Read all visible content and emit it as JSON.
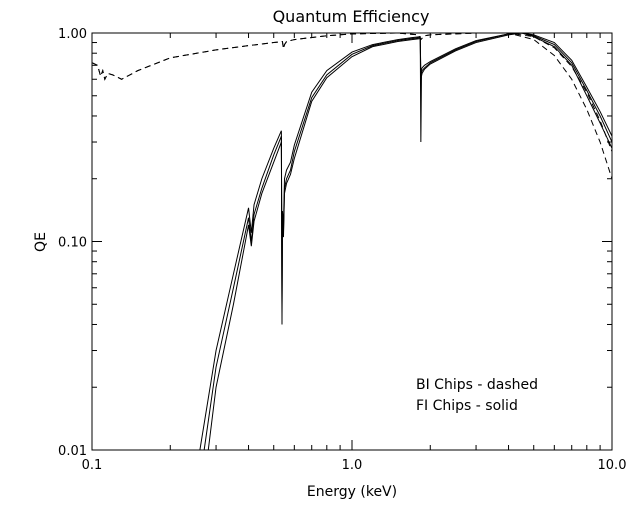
{
  "chart_data": {
    "type": "line",
    "title": "Quantum Efficiency",
    "xlabel": "Energy (keV)",
    "ylabel": "QE",
    "x_scale": "log",
    "y_scale": "log",
    "xlim": [
      0.1,
      10.0
    ],
    "ylim": [
      0.01,
      1.0
    ],
    "x_tick_labels": [
      "0.1",
      "1.0",
      "10.0"
    ],
    "y_tick_labels": [
      "0.01",
      "0.10",
      "1.00"
    ],
    "grid": false,
    "legend_position": "bottom-right",
    "legend_entries": [
      "BI Chips - dashed",
      "FI Chips - solid"
    ],
    "series": [
      {
        "style": "solid",
        "x": [
          0.26,
          0.3,
          0.35,
          0.4,
          0.41,
          0.42,
          0.45,
          0.5,
          0.535,
          0.538,
          0.54,
          0.545,
          0.55,
          0.56,
          0.58,
          0.6,
          0.7,
          0.8,
          1.0,
          1.2,
          1.5,
          1.7,
          1.83,
          1.84,
          1.85,
          1.86,
          1.9,
          2.0,
          2.5,
          3.0,
          4.0,
          4.5,
          5.0,
          6.0,
          7.0,
          8.0,
          9.0,
          10.0
        ],
        "y": [
          0.01,
          0.03,
          0.07,
          0.145,
          0.11,
          0.15,
          0.2,
          0.28,
          0.34,
          0.05,
          0.14,
          0.12,
          0.2,
          0.22,
          0.24,
          0.29,
          0.52,
          0.66,
          0.81,
          0.88,
          0.93,
          0.95,
          0.96,
          0.6,
          0.67,
          0.68,
          0.7,
          0.73,
          0.84,
          0.92,
          0.99,
          1.0,
          0.98,
          0.9,
          0.74,
          0.55,
          0.42,
          0.32
        ]
      },
      {
        "style": "solid",
        "x": [
          0.27,
          0.3,
          0.35,
          0.4,
          0.41,
          0.42,
          0.45,
          0.5,
          0.535,
          0.538,
          0.54,
          0.545,
          0.55,
          0.56,
          0.58,
          0.6,
          0.7,
          0.8,
          1.0,
          1.2,
          1.5,
          1.7,
          1.83,
          1.84,
          1.85,
          1.86,
          1.9,
          2.0,
          2.5,
          3.0,
          4.0,
          4.5,
          5.0,
          6.0,
          7.0,
          8.0,
          9.0,
          10.0
        ],
        "y": [
          0.01,
          0.025,
          0.06,
          0.13,
          0.1,
          0.135,
          0.18,
          0.26,
          0.32,
          0.04,
          0.13,
          0.11,
          0.18,
          0.2,
          0.22,
          0.27,
          0.49,
          0.63,
          0.79,
          0.87,
          0.92,
          0.94,
          0.95,
          0.58,
          0.64,
          0.66,
          0.68,
          0.72,
          0.83,
          0.91,
          0.99,
          1.0,
          0.97,
          0.88,
          0.72,
          0.53,
          0.4,
          0.3
        ]
      },
      {
        "style": "solid",
        "x": [
          0.28,
          0.3,
          0.35,
          0.4,
          0.41,
          0.42,
          0.45,
          0.5,
          0.535,
          0.538,
          0.54,
          0.545,
          0.55,
          0.56,
          0.58,
          0.6,
          0.7,
          0.8,
          1.0,
          1.2,
          1.5,
          1.7,
          1.83,
          1.84,
          1.85,
          1.86,
          1.9,
          2.0,
          2.5,
          3.0,
          4.0,
          4.5,
          5.0,
          6.0,
          7.0,
          8.0,
          9.0,
          10.0
        ],
        "y": [
          0.01,
          0.02,
          0.05,
          0.12,
          0.095,
          0.125,
          0.17,
          0.24,
          0.3,
          0.045,
          0.125,
          0.105,
          0.17,
          0.19,
          0.21,
          0.25,
          0.47,
          0.61,
          0.77,
          0.86,
          0.91,
          0.93,
          0.94,
          0.3,
          0.62,
          0.64,
          0.67,
          0.71,
          0.82,
          0.9,
          0.98,
          1.0,
          0.96,
          0.86,
          0.7,
          0.5,
          0.37,
          0.28
        ]
      },
      {
        "style": "dashed",
        "x": [
          0.1,
          0.105,
          0.108,
          0.11,
          0.112,
          0.115,
          0.12,
          0.13,
          0.15,
          0.2,
          0.3,
          0.4,
          0.5,
          0.54,
          0.545,
          0.55,
          0.56,
          0.6,
          0.8,
          1.0,
          1.5,
          1.8,
          1.84,
          1.9,
          2.0,
          3.0,
          4.0,
          5.0,
          6.0,
          7.0,
          8.0,
          9.0,
          10.0
        ],
        "y": [
          0.72,
          0.7,
          0.62,
          0.66,
          0.6,
          0.64,
          0.63,
          0.6,
          0.66,
          0.76,
          0.83,
          0.87,
          0.9,
          0.91,
          0.84,
          0.88,
          0.91,
          0.93,
          0.97,
          0.99,
          1.0,
          0.98,
          0.93,
          0.97,
          0.98,
          1.0,
          1.0,
          0.93,
          0.78,
          0.6,
          0.43,
          0.3,
          0.2
        ]
      },
      {
        "style": "dashed",
        "x": [
          0.1,
          0.105,
          0.108,
          0.11,
          0.112,
          0.115,
          0.12,
          0.13,
          0.15,
          0.2,
          0.3,
          0.4,
          0.5,
          0.54,
          0.545,
          0.55,
          0.56,
          0.6,
          0.8,
          1.0,
          1.5,
          1.8,
          1.84,
          1.9,
          2.0,
          3.0,
          4.0,
          5.0,
          6.0,
          7.0,
          8.0,
          9.0,
          10.0
        ],
        "y": [
          0.72,
          0.7,
          0.62,
          0.66,
          0.6,
          0.64,
          0.63,
          0.6,
          0.66,
          0.76,
          0.83,
          0.87,
          0.9,
          0.91,
          0.84,
          0.88,
          0.91,
          0.93,
          0.97,
          0.99,
          1.0,
          0.98,
          0.93,
          0.97,
          0.98,
          1.0,
          1.0,
          0.96,
          0.85,
          0.69,
          0.52,
          0.38,
          0.27
        ]
      }
    ]
  }
}
